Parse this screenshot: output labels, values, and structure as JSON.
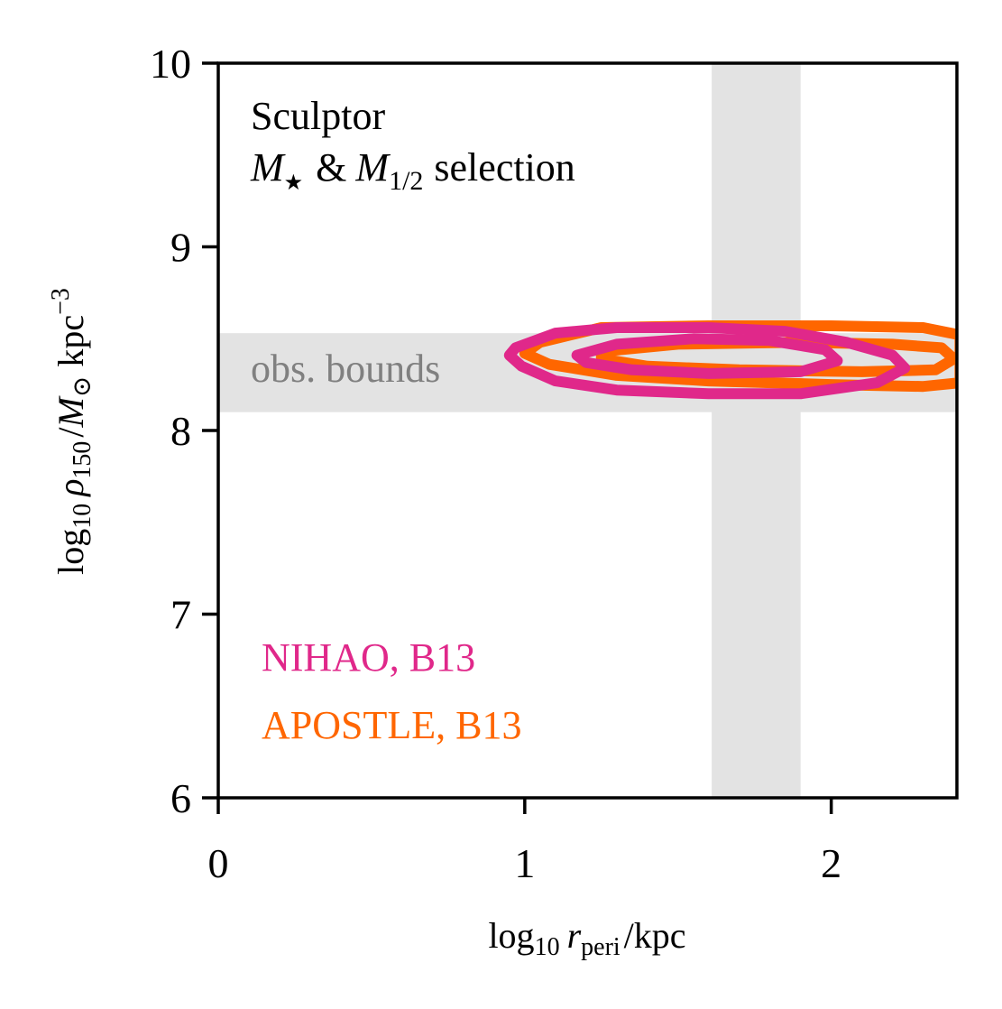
{
  "chart_data": {
    "type": "contour",
    "title_lines": [
      "Sculptor",
      "M★ & M1/2 selection"
    ],
    "title_parts": {
      "line1": "Sculptor",
      "m": "M",
      "star": "★",
      "amp": "&",
      "m2": "M",
      "half": "1/2",
      "selection": "selection"
    },
    "xlabel": "log10 r_peri / kpc",
    "xlabel_parts": {
      "log": "log",
      "ten": "10",
      "r": "r",
      "sub": "peri",
      "unit": "kpc"
    },
    "ylabel": "log10 ρ150 / M⊙ kpc^-3",
    "ylabel_parts": {
      "log": "log",
      "ten": "10",
      "rho": "ρ",
      "sub": "150",
      "m": "M",
      "sun": "⊙",
      "unit": "kpc",
      "exp": "−3"
    },
    "xlim": [
      0,
      2.41
    ],
    "ylim": [
      6,
      10
    ],
    "xticks": [
      0,
      1,
      2
    ],
    "yticks": [
      6,
      7,
      8,
      9,
      10
    ],
    "obs_bounds": {
      "label": "obs. bounds",
      "x_band": [
        1.61,
        1.9
      ],
      "y_band": [
        8.1,
        8.53
      ],
      "color": "#e3e3e3",
      "label_color": "#808080"
    },
    "series": [
      {
        "name": "APOSTLE, B13",
        "color": "#ff6600",
        "contours": [
          [
            [
              1.05,
              8.48
            ],
            [
              1.25,
              8.56
            ],
            [
              1.6,
              8.57
            ],
            [
              2.0,
              8.57
            ],
            [
              2.3,
              8.56
            ],
            [
              2.42,
              8.52
            ],
            [
              2.42,
              8.26
            ],
            [
              2.3,
              8.24
            ],
            [
              2.0,
              8.25
            ],
            [
              1.6,
              8.27
            ],
            [
              1.3,
              8.3
            ],
            [
              1.08,
              8.36
            ],
            [
              1.0,
              8.42
            ]
          ],
          [
            [
              1.25,
              8.43
            ],
            [
              1.5,
              8.47
            ],
            [
              1.9,
              8.48
            ],
            [
              2.2,
              8.47
            ],
            [
              2.36,
              8.45
            ],
            [
              2.4,
              8.39
            ],
            [
              2.34,
              8.33
            ],
            [
              2.1,
              8.32
            ],
            [
              1.7,
              8.33
            ],
            [
              1.4,
              8.35
            ],
            [
              1.25,
              8.39
            ]
          ]
        ]
      },
      {
        "name": "NIHAO, B13",
        "color": "#e0288a",
        "contours": [
          [
            [
              0.97,
              8.45
            ],
            [
              1.1,
              8.53
            ],
            [
              1.3,
              8.56
            ],
            [
              1.6,
              8.56
            ],
            [
              1.85,
              8.54
            ],
            [
              2.05,
              8.48
            ],
            [
              2.2,
              8.41
            ],
            [
              2.24,
              8.34
            ],
            [
              2.15,
              8.26
            ],
            [
              1.9,
              8.2
            ],
            [
              1.6,
              8.2
            ],
            [
              1.3,
              8.22
            ],
            [
              1.1,
              8.27
            ],
            [
              0.99,
              8.35
            ],
            [
              0.95,
              8.41
            ]
          ],
          [
            [
              1.17,
              8.41
            ],
            [
              1.3,
              8.47
            ],
            [
              1.55,
              8.5
            ],
            [
              1.8,
              8.49
            ],
            [
              1.98,
              8.44
            ],
            [
              2.02,
              8.38
            ],
            [
              1.9,
              8.32
            ],
            [
              1.6,
              8.31
            ],
            [
              1.35,
              8.33
            ],
            [
              1.2,
              8.37
            ]
          ]
        ]
      }
    ],
    "legend": [
      "NIHAO, B13",
      "APOSTLE, B13"
    ],
    "grid": false
  }
}
